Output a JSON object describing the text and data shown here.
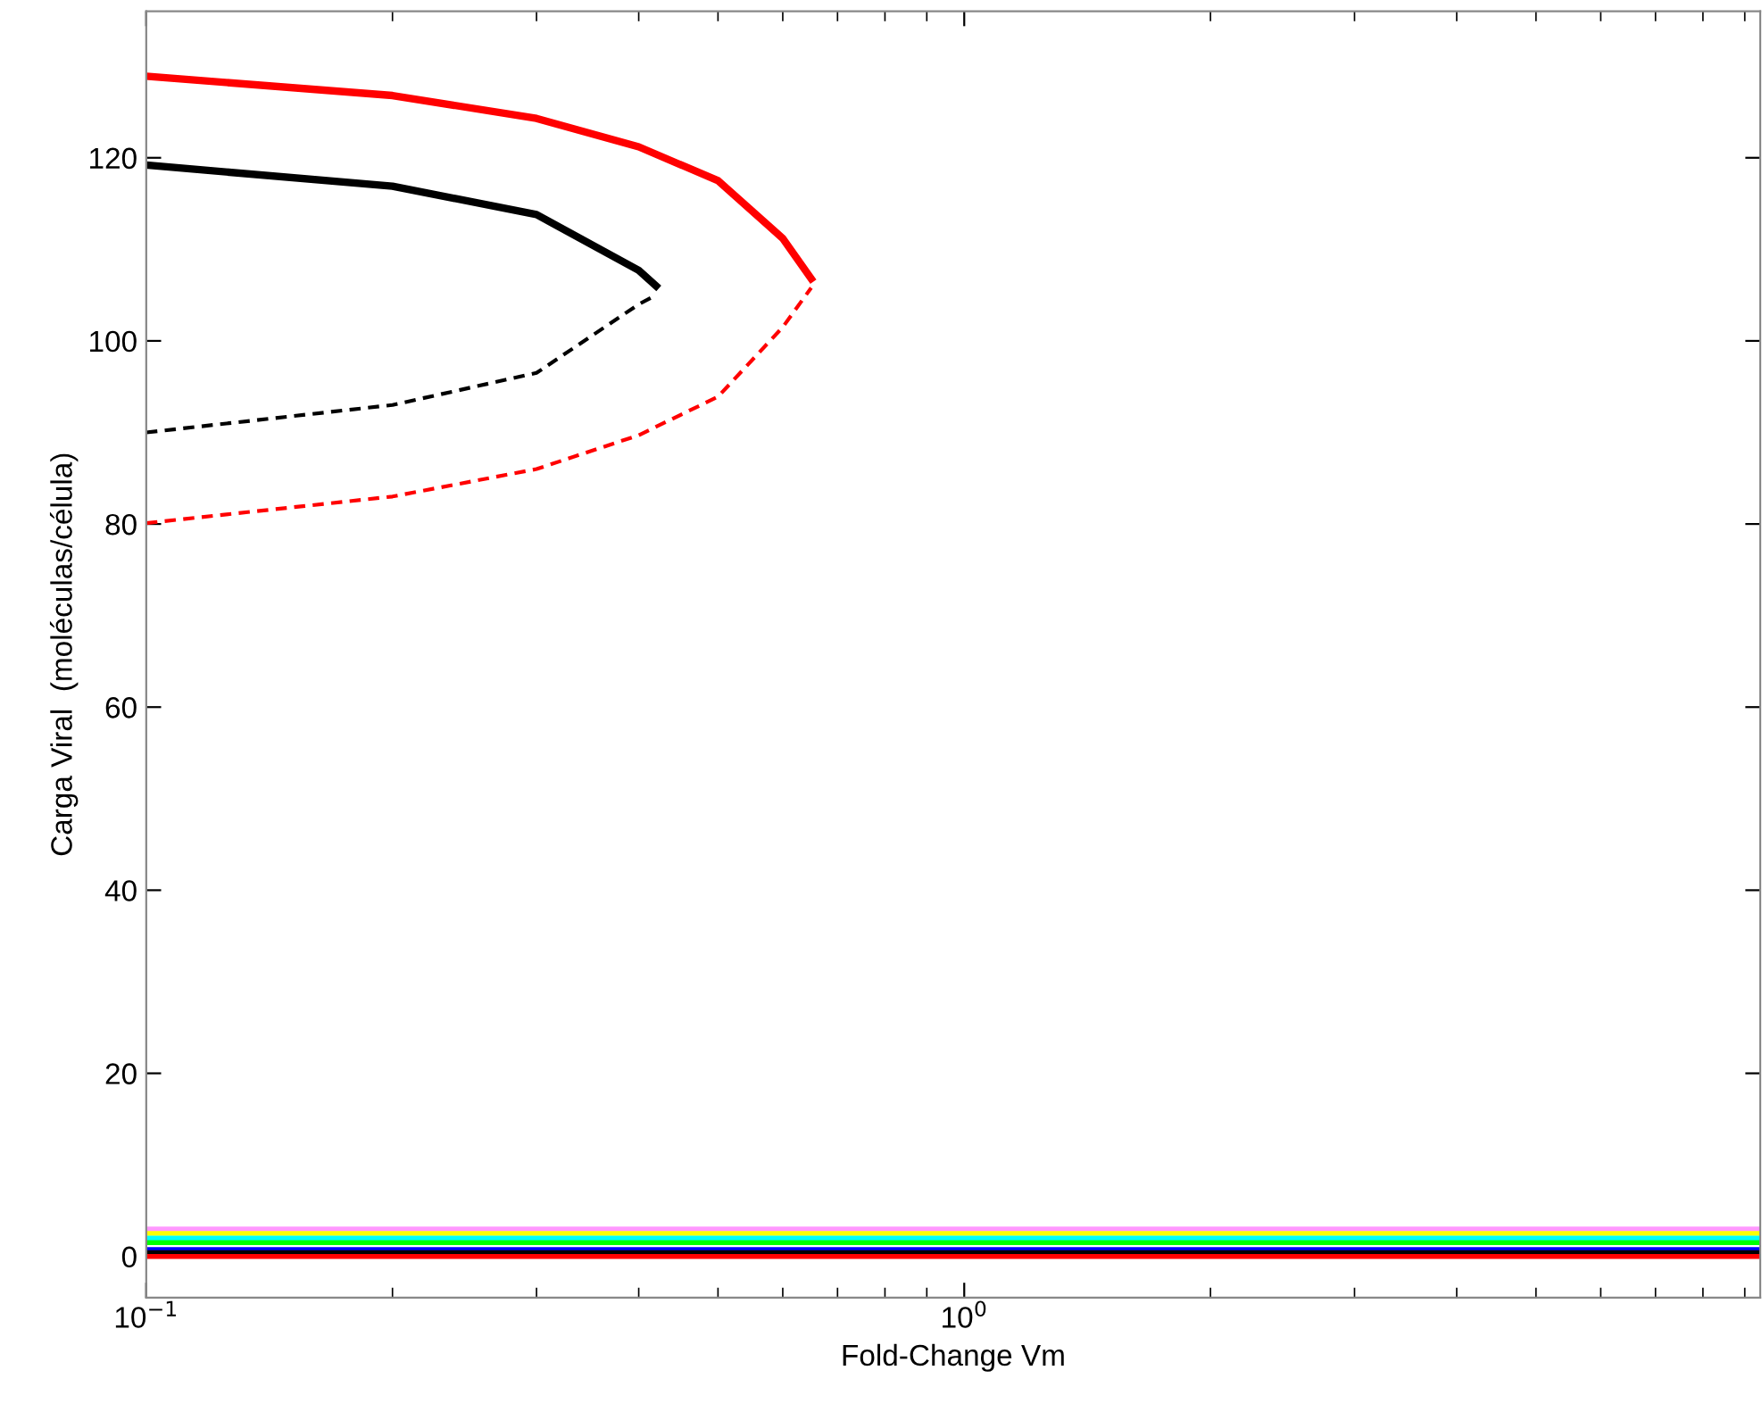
{
  "chart_data": {
    "type": "line",
    "xlabel": "Fold-Change Vm",
    "ylabel": "Carga Viral  (moléculas/célula)",
    "log": "x",
    "xlim": [
      0.1,
      9.4
    ],
    "ylim": [
      -4.5,
      136
    ],
    "xticks": [
      {
        "value": 0.1,
        "label": "10$^{−1}$"
      },
      {
        "value": 1,
        "label": "10$^{0}$"
      }
    ],
    "yticks": [
      0,
      20,
      40,
      60,
      80,
      100,
      120
    ],
    "grid": false,
    "legend": false,
    "marker": "none",
    "series": [
      {
        "color": "#ff0000",
        "line_style": "solid",
        "x": [
          0.1,
          0.2,
          0.3,
          0.4,
          0.5,
          0.6,
          0.65
        ],
        "values": [
          128.9,
          126.8,
          124.3,
          121.2,
          117.5,
          111.2,
          106.8
        ]
      },
      {
        "color": "#ff0000",
        "line_style": "dashed",
        "x": [
          0.1,
          0.2,
          0.3,
          0.4,
          0.5,
          0.6,
          0.65
        ],
        "values": [
          80.1,
          83,
          86,
          89.7,
          93.9,
          101.5,
          105.8
        ]
      },
      {
        "color": "#000000",
        "line_style": "solid",
        "x": [
          0.1,
          0.2,
          0.3,
          0.4,
          0.42
        ],
        "values": [
          119.2,
          116.9,
          113.8,
          107.7,
          106
        ]
      },
      {
        "color": "#000000",
        "line_style": "dashed",
        "x": [
          0.1,
          0.2,
          0.3,
          0.4,
          0.42
        ],
        "values": [
          90,
          93,
          96.5,
          104,
          105
        ]
      },
      {
        "color": "#ff99ff",
        "line_style": "solid",
        "x": [
          0.1,
          9.4
        ],
        "values": [
          3,
          3
        ]
      },
      {
        "color": "#ffff00",
        "line_style": "solid",
        "x": [
          0.1,
          9.4
        ],
        "values": [
          2.5,
          2.5
        ]
      },
      {
        "color": "#00ffff",
        "line_style": "solid",
        "x": [
          0.1,
          9.4
        ],
        "values": [
          2,
          2
        ]
      },
      {
        "color": "#00ff00",
        "line_style": "solid",
        "x": [
          0.1,
          9.4
        ],
        "values": [
          1.5,
          1.5
        ]
      },
      {
        "color": "#0000ff",
        "line_style": "solid",
        "x": [
          0.1,
          9.4
        ],
        "values": [
          0.75,
          0.75
        ]
      },
      {
        "color": "#000000",
        "line_style": "solid",
        "x": [
          0.1,
          9.4
        ],
        "values": [
          0.4,
          0.4
        ]
      },
      {
        "color": "#ff0000",
        "line_style": "solid",
        "x": [
          0.1,
          9.4
        ],
        "values": [
          0,
          0
        ]
      }
    ]
  }
}
